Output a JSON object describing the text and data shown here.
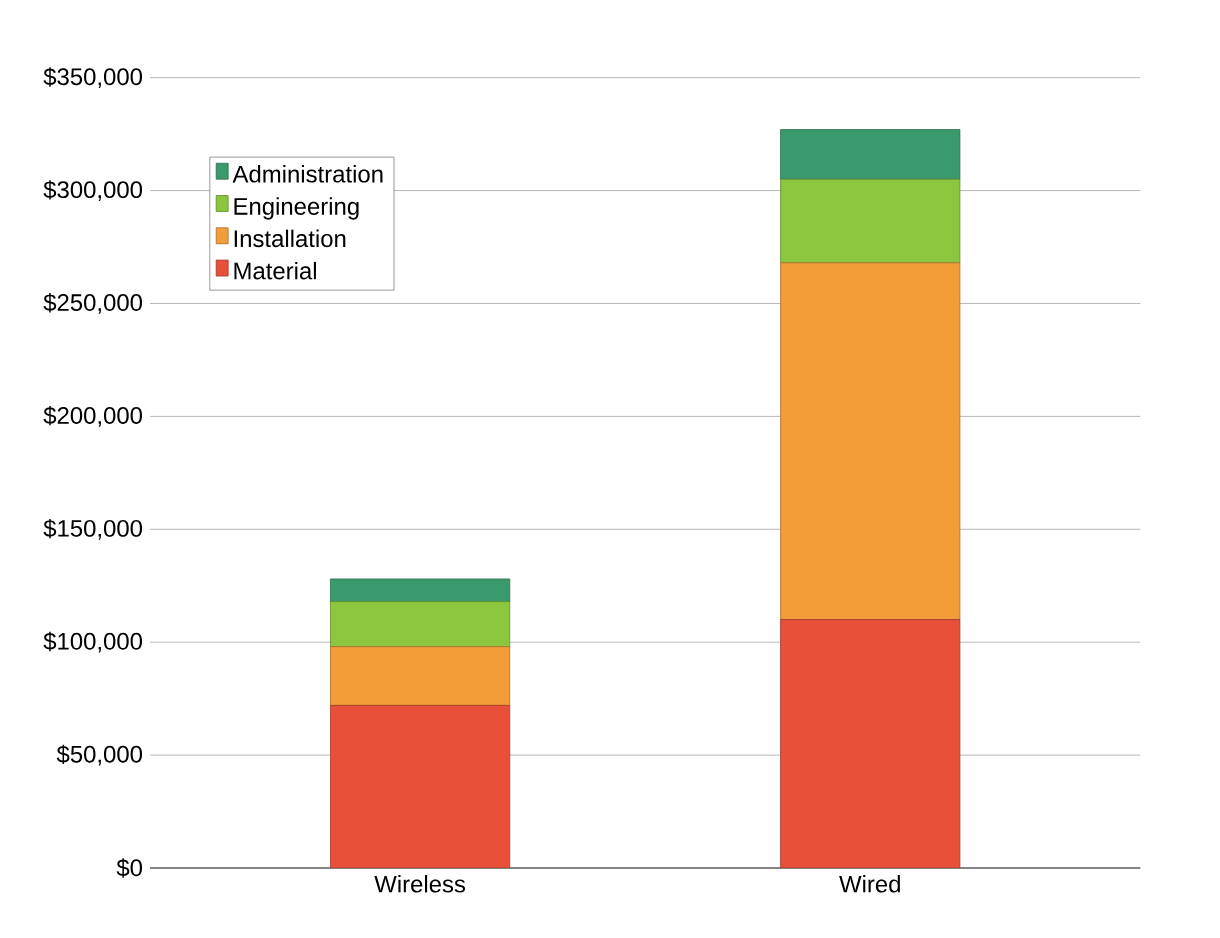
{
  "chart_data": {
    "type": "bar",
    "stacked": true,
    "categories": [
      "Wireless",
      "Wired"
    ],
    "series": [
      {
        "name": "Material",
        "color": "#e8503a",
        "values": [
          72000,
          110000
        ]
      },
      {
        "name": "Installation",
        "color": "#f39c3a",
        "values": [
          26000,
          158000
        ]
      },
      {
        "name": "Engineering",
        "color": "#8cc63f",
        "values": [
          20000,
          37000
        ]
      },
      {
        "name": "Administration",
        "color": "#3a9a6e",
        "values": [
          10000,
          22000
        ]
      }
    ],
    "ylim": [
      0,
      350000
    ],
    "yticks": [
      {
        "value": 0,
        "label": "$0"
      },
      {
        "value": 50000,
        "label": "$50,000"
      },
      {
        "value": 100000,
        "label": "$100,000"
      },
      {
        "value": 150000,
        "label": "$150,000"
      },
      {
        "value": 200000,
        "label": "$200,000"
      },
      {
        "value": 250000,
        "label": "$250,000"
      },
      {
        "value": 300000,
        "label": "$300,000"
      },
      {
        "value": 350000,
        "label": "$350,000"
      }
    ],
    "grid": "y",
    "legend": "top left"
  }
}
